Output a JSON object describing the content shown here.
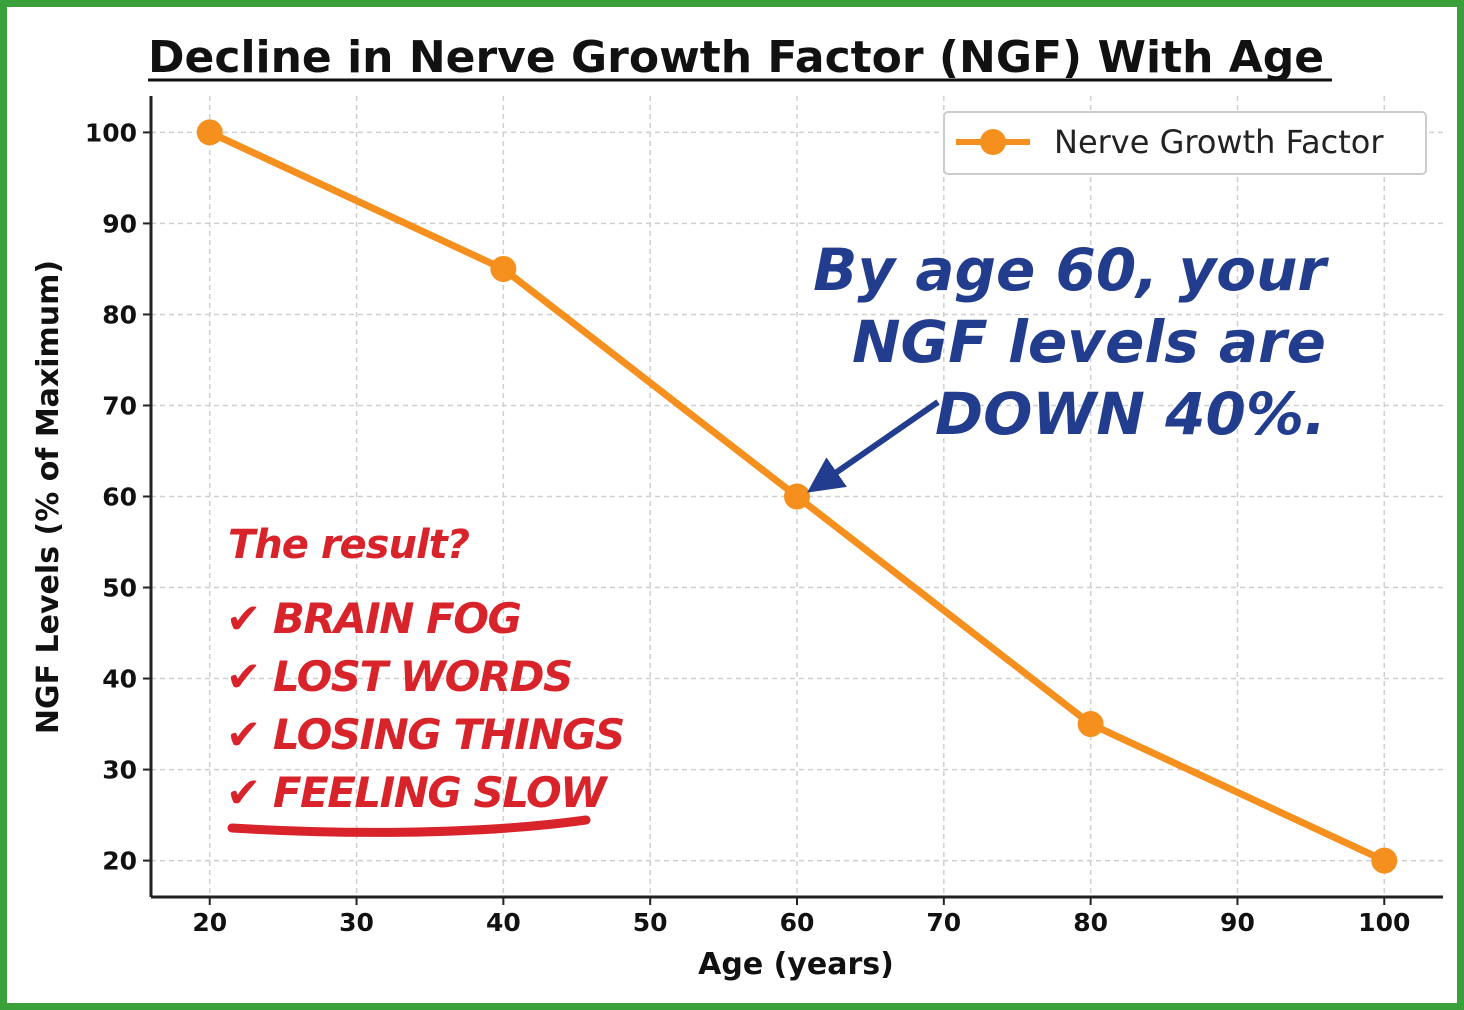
{
  "chart_data": {
    "type": "line",
    "title": "Decline in Nerve Growth Factor (NGF) With Age",
    "xlabel": "Age (years)",
    "ylabel": "NGF Levels (% of Maximum)",
    "xlim": [
      16,
      104
    ],
    "ylim": [
      16,
      104
    ],
    "xticks": [
      20,
      30,
      40,
      50,
      60,
      70,
      80,
      90,
      100
    ],
    "yticks": [
      20,
      30,
      40,
      50,
      60,
      70,
      80,
      90,
      100
    ],
    "grid": true,
    "legend_position": "top-right",
    "series": [
      {
        "name": "Nerve Growth Factor",
        "color": "#f5901e",
        "x": [
          20,
          40,
          60,
          80,
          100
        ],
        "y": [
          100,
          85,
          60,
          35,
          20
        ]
      }
    ],
    "annotations": {
      "blue_callout": [
        "By age 60, your",
        "NGF levels are",
        "DOWN 40%."
      ],
      "arrow_target": {
        "x": 60,
        "y": 60
      },
      "result_title": "The result?",
      "result_items": [
        "✔ BRAIN FOG",
        "✔ LOST WORDS",
        "✔ LOSING THINGS",
        "✔ FEELING SLOW"
      ]
    }
  }
}
